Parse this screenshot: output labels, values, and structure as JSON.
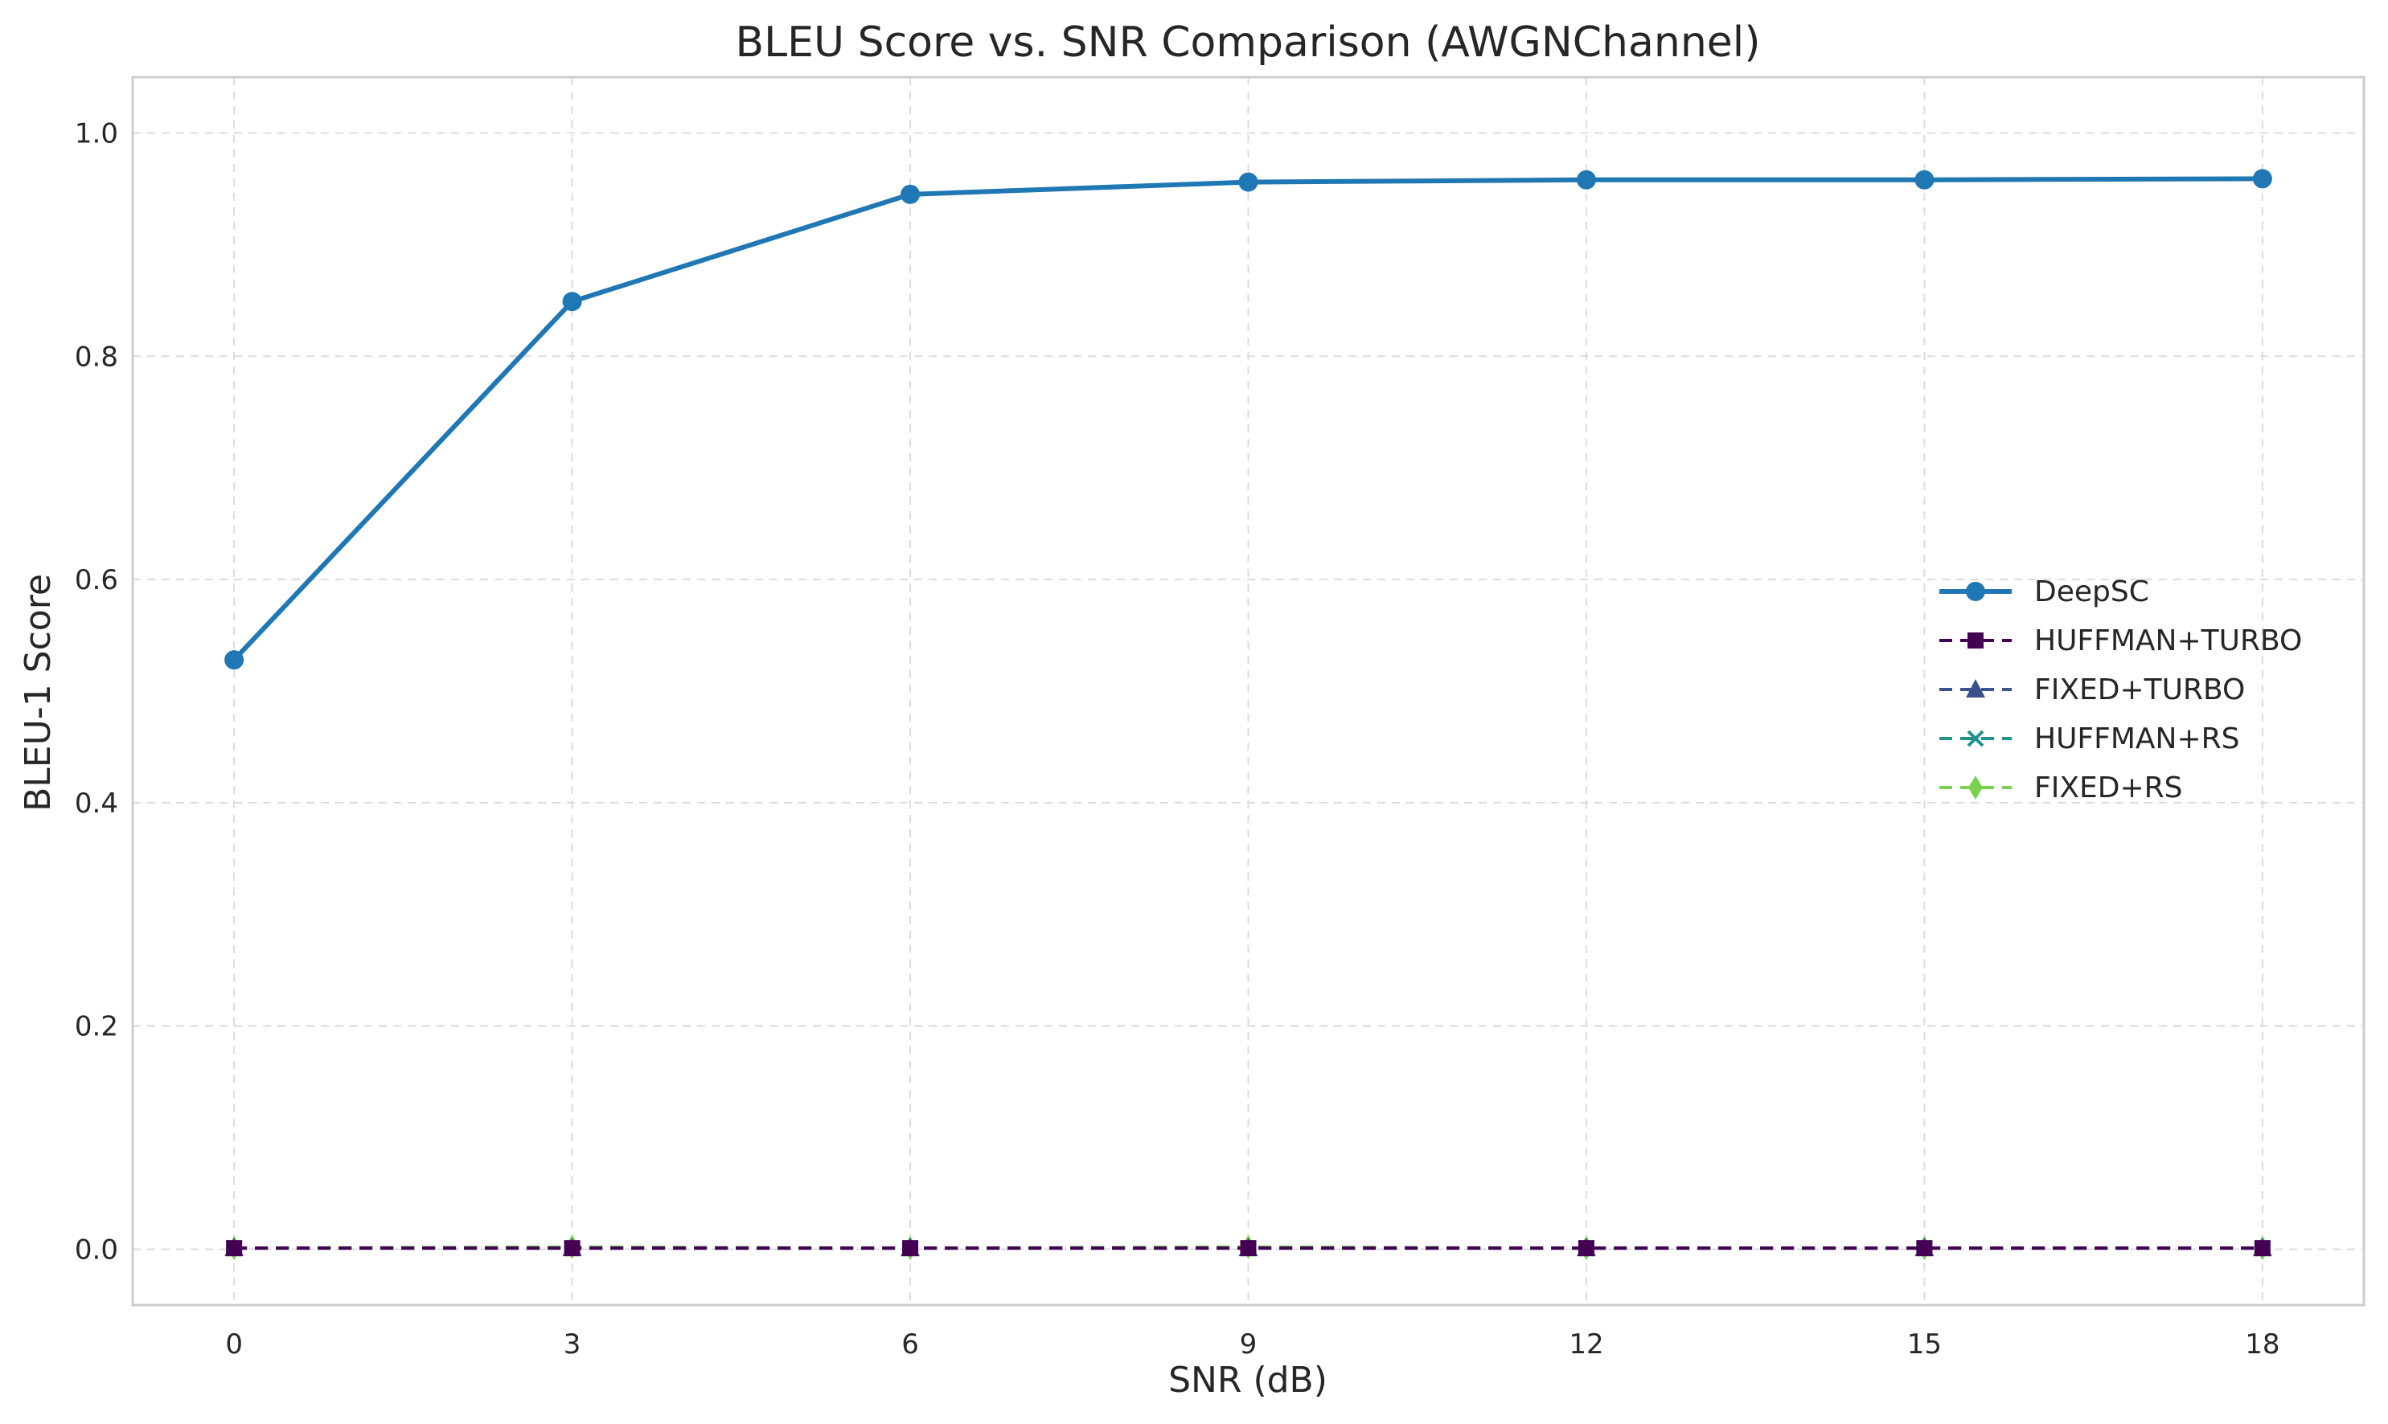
{
  "chart_data": {
    "type": "line",
    "title": "BLEU Score vs. SNR Comparison (AWGNChannel)",
    "xlabel": "SNR (dB)",
    "ylabel": "BLEU-1 Score",
    "x": [
      0,
      3,
      6,
      9,
      12,
      15,
      18
    ],
    "xticks": [
      "0",
      "3",
      "6",
      "9",
      "12",
      "15",
      "18"
    ],
    "yticks": [
      "0.0",
      "0.2",
      "0.4",
      "0.6",
      "0.8",
      "1.0"
    ],
    "xlim": [
      -0.9,
      18.9
    ],
    "ylim": [
      -0.05,
      1.05
    ],
    "grid": true,
    "legend_position": "center-right",
    "series": [
      {
        "name": "DeepSC",
        "values": [
          0.528,
          0.849,
          0.945,
          0.956,
          0.958,
          0.958,
          0.959
        ],
        "color": "#1f77b4",
        "marker": "circle",
        "dash": "solid"
      },
      {
        "name": "HUFFMAN+TURBO",
        "values": [
          0.001,
          0.001,
          0.001,
          0.001,
          0.001,
          0.001,
          0.001
        ],
        "color": "#440154",
        "marker": "square",
        "dash": "dashed"
      },
      {
        "name": "FIXED+TURBO",
        "values": [
          0.001,
          0.001,
          0.001,
          0.001,
          0.001,
          0.001,
          0.001
        ],
        "color": "#3b528b",
        "marker": "triangle",
        "dash": "dashed"
      },
      {
        "name": "HUFFMAN+RS",
        "values": [
          0.001,
          0.001,
          0.001,
          0.001,
          0.001,
          0.001,
          0.001
        ],
        "color": "#21918c",
        "marker": "x",
        "dash": "dashed"
      },
      {
        "name": "FIXED+RS",
        "values": [
          0.001,
          0.002,
          0.001,
          0.002,
          0.001,
          0.001,
          0.001
        ],
        "color": "#7ad151",
        "marker": "diamond",
        "dash": "dashed"
      }
    ]
  }
}
